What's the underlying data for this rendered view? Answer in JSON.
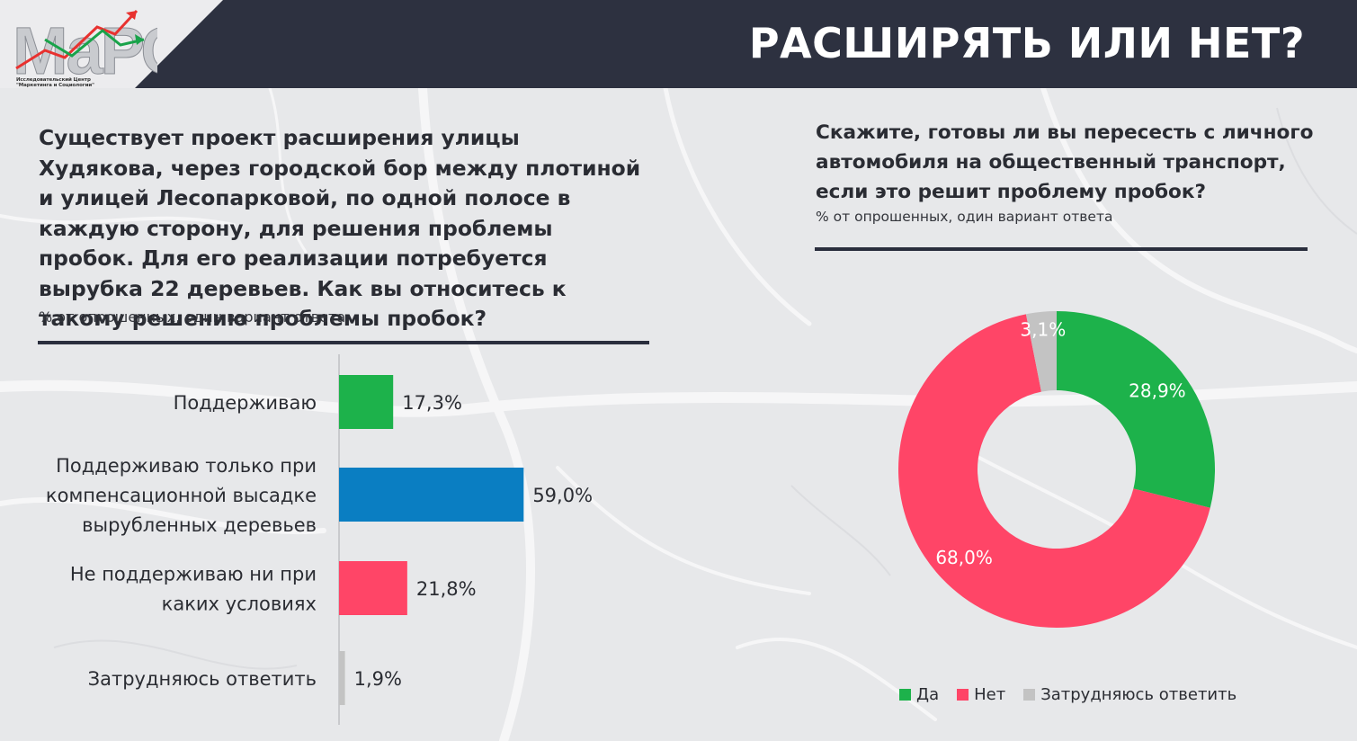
{
  "header": {
    "title": "РАСШИРЯТЬ ИЛИ НЕТ?",
    "logo_text": "МаРС",
    "logo_caption_line1": "Исследовательский Центр",
    "logo_caption_line2": "\"Маркетинга и Социологии\""
  },
  "left": {
    "question": "Существует проект расширения улицы Худякова, через городской бор между плотиной и улицей Лесопарковой, по одной полосе в каждую сторону, для решения проблемы пробок. Для его реализации потребуется вырубка 22 деревьев. Как вы относитесь к такому решению проблемы пробок?",
    "note": "% от опрошенных, один вариант ответа"
  },
  "right": {
    "question": "Скажите, готовы ли вы пересесть с личного автомобиля на общественный транспорт, если это решит проблему пробок?",
    "note": "% от опрошенных, один вариант ответа"
  },
  "colors": {
    "header": "#2d3140",
    "green": "#1db24b",
    "blue": "#0a7ec2",
    "red": "#ff4567",
    "gray": "#c3c3c3"
  },
  "chart_data": [
    {
      "type": "bar",
      "orientation": "horizontal",
      "categories": [
        [
          "Поддерживаю"
        ],
        [
          "Поддерживаю только при",
          "компенсационной высадке",
          "вырубленных деревьев"
        ],
        [
          "Не поддерживаю ни при",
          "каких условиях"
        ],
        [
          "Затрудняюсь ответить"
        ]
      ],
      "values": [
        17.3,
        59.0,
        21.8,
        1.9
      ],
      "value_labels": [
        "17,3%",
        "59,0%",
        "21,8%",
        "1,9%"
      ],
      "colors": [
        "#1db24b",
        "#0a7ec2",
        "#ff4567",
        "#c3c3c3"
      ],
      "xlim": [
        0,
        100
      ],
      "grid": false
    },
    {
      "type": "pie",
      "donut": true,
      "labels": [
        "Да",
        "Нет",
        "Затрудняюсь ответить"
      ],
      "values": [
        28.9,
        68.0,
        3.1
      ],
      "value_labels": [
        "28,9%",
        "68,0%",
        "3,1%"
      ],
      "colors": [
        "#1db24b",
        "#ff4567",
        "#c3c3c3"
      ],
      "legend": "bottom"
    }
  ]
}
